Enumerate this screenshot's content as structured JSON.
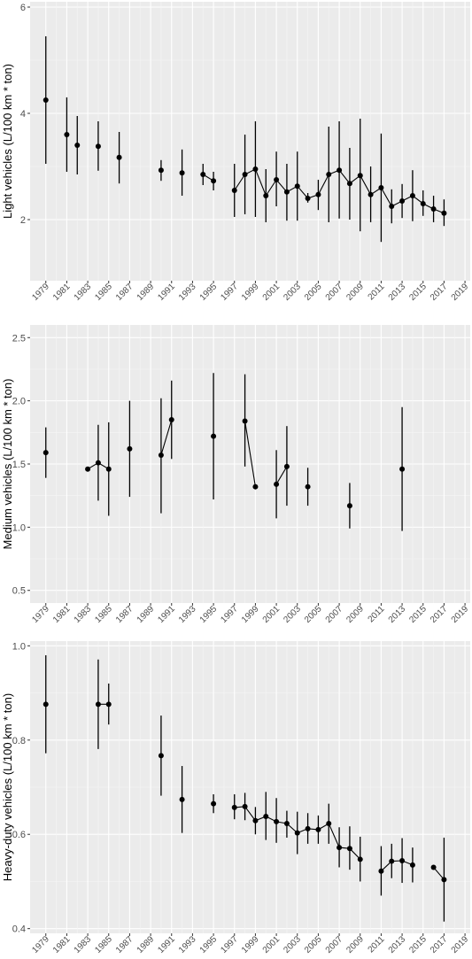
{
  "chart_data": [
    {
      "type": "scatter",
      "ylabel": "Light vehicles (L/100 km * ton)",
      "xlim": [
        1977.5,
        2019.5
      ],
      "ylim": [
        0.85,
        6.1
      ],
      "yticks": [
        2,
        4,
        6
      ],
      "xticks": [
        1979,
        1981,
        1983,
        1985,
        1987,
        1989,
        1991,
        1993,
        1995,
        1997,
        1999,
        2001,
        2003,
        2005,
        2007,
        2009,
        2011,
        2013,
        2015,
        2017,
        2019
      ],
      "points": [
        {
          "x": 1979,
          "y": 4.25,
          "lo": 3.05,
          "hi": 5.45
        },
        {
          "x": 1981,
          "y": 3.6,
          "lo": 2.9,
          "hi": 4.3
        },
        {
          "x": 1982,
          "y": 3.4,
          "lo": 2.85,
          "hi": 3.95
        },
        {
          "x": 1984,
          "y": 3.38,
          "lo": 2.92,
          "hi": 3.85
        },
        {
          "x": 1986,
          "y": 3.17,
          "lo": 2.68,
          "hi": 3.65
        },
        {
          "x": 1990,
          "y": 2.93,
          "lo": 2.73,
          "hi": 3.12
        },
        {
          "x": 1992,
          "y": 2.88,
          "lo": 2.45,
          "hi": 3.32
        },
        {
          "x": 1994,
          "y": 2.85,
          "lo": 2.65,
          "hi": 3.05
        },
        {
          "x": 1995,
          "y": 2.73,
          "lo": 2.55,
          "hi": 2.9
        },
        {
          "x": 1997,
          "y": 2.55,
          "lo": 2.05,
          "hi": 3.05
        },
        {
          "x": 1998,
          "y": 2.85,
          "lo": 2.1,
          "hi": 3.6
        },
        {
          "x": 1999,
          "y": 2.95,
          "lo": 2.05,
          "hi": 3.85
        },
        {
          "x": 2000,
          "y": 2.45,
          "lo": 1.95,
          "hi": 2.95
        },
        {
          "x": 2001,
          "y": 2.75,
          "lo": 2.25,
          "hi": 3.28
        },
        {
          "x": 2002,
          "y": 2.52,
          "lo": 1.98,
          "hi": 3.05
        },
        {
          "x": 2003,
          "y": 2.63,
          "lo": 1.98,
          "hi": 3.28
        },
        {
          "x": 2004,
          "y": 2.4,
          "lo": 2.32,
          "hi": 2.5
        },
        {
          "x": 2005,
          "y": 2.47,
          "lo": 2.18,
          "hi": 2.75
        },
        {
          "x": 2006,
          "y": 2.85,
          "lo": 1.95,
          "hi": 3.75
        },
        {
          "x": 2007,
          "y": 2.93,
          "lo": 2.02,
          "hi": 3.85
        },
        {
          "x": 2008,
          "y": 2.68,
          "lo": 2.0,
          "hi": 3.35
        },
        {
          "x": 2009,
          "y": 2.83,
          "lo": 1.78,
          "hi": 3.9
        },
        {
          "x": 2010,
          "y": 2.47,
          "lo": 1.95,
          "hi": 3.0
        },
        {
          "x": 2011,
          "y": 2.6,
          "lo": 1.58,
          "hi": 3.62
        },
        {
          "x": 2012,
          "y": 2.25,
          "lo": 1.93,
          "hi": 2.57
        },
        {
          "x": 2013,
          "y": 2.35,
          "lo": 2.03,
          "hi": 2.67
        },
        {
          "x": 2014,
          "y": 2.45,
          "lo": 1.97,
          "hi": 2.93
        },
        {
          "x": 2015,
          "y": 2.3,
          "lo": 2.07,
          "hi": 2.55
        },
        {
          "x": 2016,
          "y": 2.2,
          "lo": 1.95,
          "hi": 2.45
        },
        {
          "x": 2017,
          "y": 2.12,
          "lo": 1.88,
          "hi": 2.38
        }
      ],
      "line_segments": [
        [
          1994,
          1995
        ],
        [
          1997,
          2017
        ]
      ]
    },
    {
      "type": "scatter",
      "ylabel": "Medium vehicles (L/100 km * ton)",
      "xlim": [
        1977.5,
        2019.5
      ],
      "ylim": [
        0.4,
        2.6
      ],
      "yticks": [
        0.5,
        1.0,
        1.5,
        2.0,
        2.5
      ],
      "xticks": [
        1979,
        1981,
        1983,
        1985,
        1987,
        1989,
        1991,
        1993,
        1995,
        1997,
        1999,
        2001,
        2003,
        2005,
        2007,
        2009,
        2011,
        2013,
        2015,
        2017,
        2019
      ],
      "points": [
        {
          "x": 1979,
          "y": 1.59,
          "lo": 1.39,
          "hi": 1.79
        },
        {
          "x": 1983,
          "y": 1.46,
          "lo": 1.46,
          "hi": 1.46
        },
        {
          "x": 1984,
          "y": 1.51,
          "lo": 1.21,
          "hi": 1.81
        },
        {
          "x": 1985,
          "y": 1.46,
          "lo": 1.09,
          "hi": 1.83
        },
        {
          "x": 1987,
          "y": 1.62,
          "lo": 1.24,
          "hi": 2.0
        },
        {
          "x": 1990,
          "y": 1.57,
          "lo": 1.11,
          "hi": 2.02
        },
        {
          "x": 1991,
          "y": 1.85,
          "lo": 1.54,
          "hi": 2.16
        },
        {
          "x": 1995,
          "y": 1.72,
          "lo": 1.22,
          "hi": 2.22
        },
        {
          "x": 1998,
          "y": 1.84,
          "lo": 1.48,
          "hi": 2.21
        },
        {
          "x": 1999,
          "y": 1.32,
          "lo": 1.3,
          "hi": 1.34
        },
        {
          "x": 2001,
          "y": 1.34,
          "lo": 1.07,
          "hi": 1.61
        },
        {
          "x": 2002,
          "y": 1.48,
          "lo": 1.17,
          "hi": 1.8
        },
        {
          "x": 2004,
          "y": 1.32,
          "lo": 1.17,
          "hi": 1.47
        },
        {
          "x": 2008,
          "y": 1.17,
          "lo": 0.99,
          "hi": 1.35
        },
        {
          "x": 2013,
          "y": 1.46,
          "lo": 0.97,
          "hi": 1.95
        }
      ],
      "line_segments": [
        [
          1983,
          1985
        ],
        [
          1990,
          1991
        ],
        [
          1998,
          1999
        ],
        [
          2001,
          2002
        ]
      ]
    },
    {
      "type": "scatter",
      "ylabel": "Heavy-duty vehicles (L/100 km * ton)",
      "xlim": [
        1977.5,
        2019.5
      ],
      "ylim": [
        0.39,
        1.01
      ],
      "yticks": [
        0.4,
        0.6,
        0.8,
        1.0
      ],
      "xticks": [
        1979,
        1981,
        1983,
        1985,
        1987,
        1989,
        1991,
        1993,
        1995,
        1997,
        1999,
        2001,
        2003,
        2005,
        2007,
        2009,
        2011,
        2013,
        2015,
        2017,
        2019
      ],
      "points": [
        {
          "x": 1979,
          "y": 0.876,
          "lo": 0.772,
          "hi": 0.98
        },
        {
          "x": 1984,
          "y": 0.876,
          "lo": 0.781,
          "hi": 0.971
        },
        {
          "x": 1985,
          "y": 0.876,
          "lo": 0.833,
          "hi": 0.92
        },
        {
          "x": 1990,
          "y": 0.767,
          "lo": 0.682,
          "hi": 0.852
        },
        {
          "x": 1992,
          "y": 0.674,
          "lo": 0.603,
          "hi": 0.745
        },
        {
          "x": 1995,
          "y": 0.665,
          "lo": 0.645,
          "hi": 0.685
        },
        {
          "x": 1997,
          "y": 0.657,
          "lo": 0.632,
          "hi": 0.685
        },
        {
          "x": 1998,
          "y": 0.659,
          "lo": 0.63,
          "hi": 0.688
        },
        {
          "x": 1999,
          "y": 0.629,
          "lo": 0.6,
          "hi": 0.658
        },
        {
          "x": 2000,
          "y": 0.638,
          "lo": 0.588,
          "hi": 0.69
        },
        {
          "x": 2001,
          "y": 0.627,
          "lo": 0.582,
          "hi": 0.677
        },
        {
          "x": 2002,
          "y": 0.623,
          "lo": 0.593,
          "hi": 0.65
        },
        {
          "x": 2003,
          "y": 0.603,
          "lo": 0.558,
          "hi": 0.648
        },
        {
          "x": 2004,
          "y": 0.612,
          "lo": 0.58,
          "hi": 0.645
        },
        {
          "x": 2005,
          "y": 0.61,
          "lo": 0.58,
          "hi": 0.64
        },
        {
          "x": 2006,
          "y": 0.623,
          "lo": 0.58,
          "hi": 0.665
        },
        {
          "x": 2007,
          "y": 0.572,
          "lo": 0.53,
          "hi": 0.615
        },
        {
          "x": 2008,
          "y": 0.57,
          "lo": 0.525,
          "hi": 0.617
        },
        {
          "x": 2009,
          "y": 0.547,
          "lo": 0.5,
          "hi": 0.595
        },
        {
          "x": 2011,
          "y": 0.522,
          "lo": 0.47,
          "hi": 0.575
        },
        {
          "x": 2012,
          "y": 0.543,
          "lo": 0.507,
          "hi": 0.58
        },
        {
          "x": 2013,
          "y": 0.544,
          "lo": 0.497,
          "hi": 0.592
        },
        {
          "x": 2014,
          "y": 0.535,
          "lo": 0.498,
          "hi": 0.572
        },
        {
          "x": 2016,
          "y": 0.53,
          "lo": 0.53,
          "hi": 0.53
        },
        {
          "x": 2017,
          "y": 0.504,
          "lo": 0.415,
          "hi": 0.593
        }
      ],
      "line_segments": [
        [
          1984,
          1985
        ],
        [
          1997,
          2009
        ],
        [
          2011,
          2014
        ],
        [
          2016,
          2017
        ]
      ]
    }
  ],
  "style": {
    "panel_background": "#ebebeb",
    "grid_major": "#ffffff",
    "grid_minor": "#f5f5f5",
    "point_color": "#000000",
    "tick_label_color": "#4d4d4d",
    "axis_title_color": "#000000"
  }
}
